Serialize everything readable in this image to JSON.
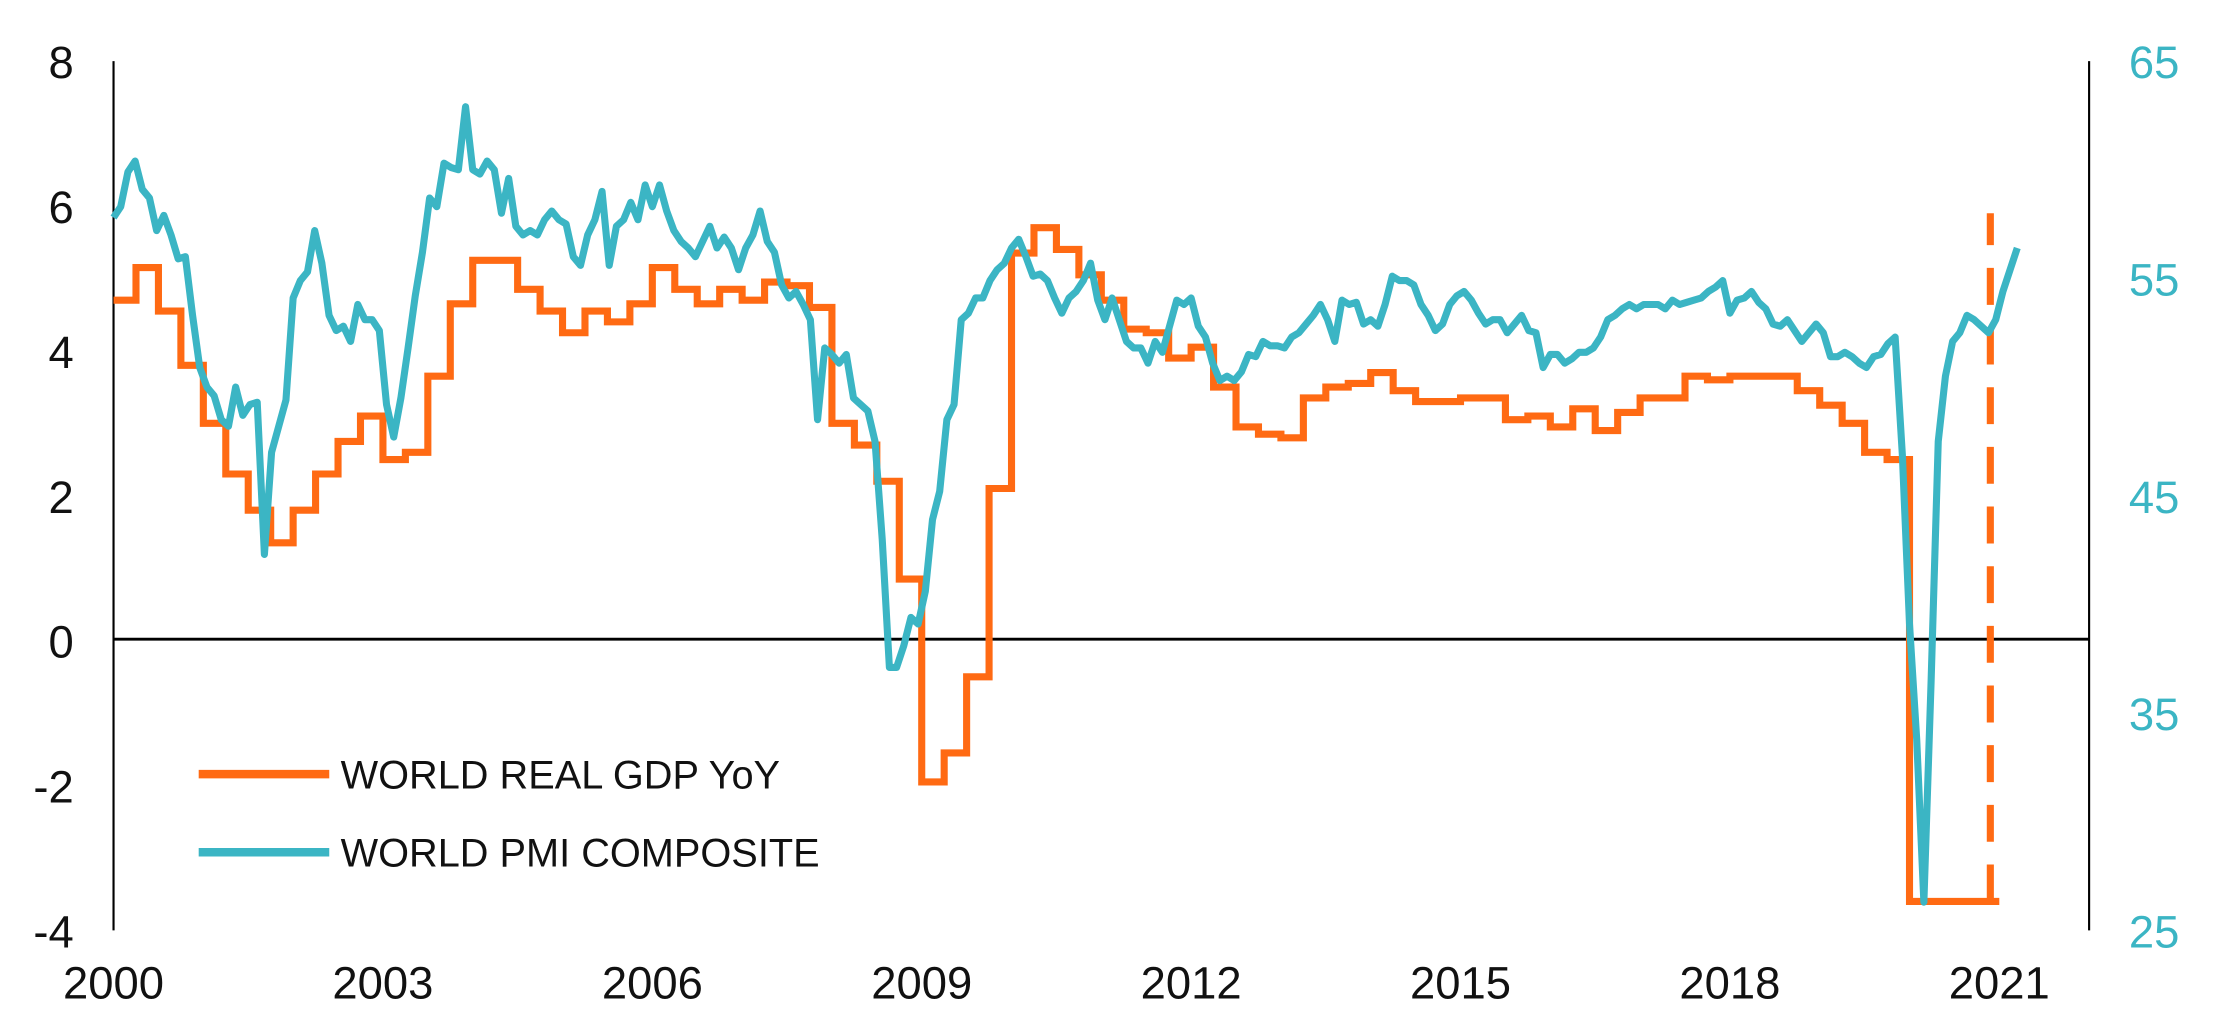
{
  "colors": {
    "gdp": "#FF6A13",
    "pmi": "#3BB5C4",
    "axis": "#000000"
  },
  "chart_data": {
    "type": "line",
    "title": "",
    "xlabel": "",
    "ylabel_left": "",
    "ylabel_right": "",
    "xlim": [
      2000,
      2022
    ],
    "ylim_left": [
      -4,
      8
    ],
    "ylim_right": [
      25,
      65
    ],
    "x_ticks": [
      "2000",
      "2003",
      "2006",
      "2009",
      "2012",
      "2015",
      "2018",
      "2021"
    ],
    "x_tick_values": [
      2000,
      2003,
      2006,
      2009,
      2012,
      2015,
      2018,
      2021
    ],
    "y_ticks_left": [
      "8",
      "6",
      "4",
      "2",
      "0",
      "-2",
      "-4"
    ],
    "y_tick_values_left": [
      8,
      6,
      4,
      2,
      0,
      -2,
      -4
    ],
    "y_ticks_right": [
      "65",
      "55",
      "45",
      "35",
      "25"
    ],
    "y_tick_values_right": [
      65,
      55,
      45,
      35,
      25
    ],
    "grid": false,
    "zero_line": true,
    "legend_position": "bottom-left",
    "series": [
      {
        "name": "WORLD REAL GDP YoY",
        "axis": "left",
        "style": "step",
        "x_start": 2000,
        "step": 0.25,
        "values": [
          4.7,
          5.15,
          4.55,
          3.8,
          3.0,
          2.3,
          1.8,
          1.35,
          1.8,
          2.3,
          2.75,
          3.1,
          2.5,
          2.6,
          3.65,
          4.65,
          5.25,
          5.25,
          4.85,
          4.55,
          4.25,
          4.55,
          4.4,
          4.65,
          5.15,
          4.85,
          4.65,
          4.85,
          4.7,
          4.95,
          4.9,
          4.6,
          3.0,
          2.7,
          2.2,
          0.85,
          -1.95,
          -1.55,
          -0.5,
          2.1,
          5.35,
          5.7,
          5.4,
          5.05,
          4.7,
          4.3,
          4.25,
          3.9,
          4.05,
          3.5,
          2.95,
          2.85,
          2.8,
          3.35,
          3.5,
          3.55,
          3.7,
          3.45,
          3.3,
          3.3,
          3.35,
          3.35,
          3.05,
          3.1,
          2.95,
          3.2,
          2.9,
          3.15,
          3.35,
          3.35,
          3.65,
          3.6,
          3.65,
          3.65,
          3.65,
          3.45,
          3.25,
          3.0,
          2.6,
          2.5,
          -3.6,
          -3.6,
          -3.6,
          -3.6
        ],
        "projection": {
          "x": 2020.9,
          "from": -3.6,
          "to": 5.9,
          "style": "dashed"
        }
      },
      {
        "name": "WORLD PMI COMPOSITE",
        "axis": "right",
        "style": "line",
        "x_start": 2000,
        "x_end": 2021.2,
        "values": [
          57.8,
          58.3,
          59.9,
          60.4,
          59.1,
          58.7,
          57.2,
          57.9,
          57.0,
          55.9,
          56.0,
          53.3,
          50.9,
          50.0,
          49.6,
          48.5,
          48.2,
          50.0,
          48.7,
          49.2,
          49.3,
          42.3,
          47.0,
          48.2,
          49.4,
          54.1,
          54.9,
          55.3,
          57.2,
          55.7,
          53.3,
          52.6,
          52.8,
          52.1,
          53.8,
          53.1,
          53.1,
          52.6,
          49.2,
          47.7,
          49.5,
          51.8,
          54.2,
          56.2,
          58.7,
          58.3,
          60.3,
          60.1,
          60.0,
          62.9,
          60.0,
          59.8,
          60.4,
          60.0,
          58.0,
          59.6,
          57.4,
          57.0,
          57.2,
          57.0,
          57.7,
          58.1,
          57.7,
          57.5,
          56.0,
          55.6,
          57.0,
          57.7,
          59.0,
          55.6,
          57.4,
          57.7,
          58.5,
          57.7,
          59.3,
          58.3,
          59.3,
          58.1,
          57.2,
          56.7,
          56.4,
          56.0,
          56.7,
          57.4,
          56.4,
          56.9,
          56.4,
          55.4,
          56.4,
          57.0,
          58.1,
          56.7,
          56.2,
          54.7,
          54.1,
          54.4,
          53.8,
          53.1,
          48.5,
          51.8,
          51.5,
          51.1,
          51.5,
          49.5,
          49.2,
          48.9,
          47.5,
          43.0,
          37.1,
          37.1,
          38.1,
          39.4,
          39.1,
          40.6,
          43.9,
          45.2,
          48.5,
          49.2,
          53.1,
          53.4,
          54.1,
          54.1,
          54.9,
          55.4,
          55.7,
          56.4,
          56.8,
          56.0,
          55.1,
          55.2,
          54.9,
          54.1,
          53.4,
          54.1,
          54.4,
          54.9,
          55.7,
          54.0,
          53.1,
          54.1,
          53.1,
          52.1,
          51.8,
          51.8,
          51.1,
          52.1,
          51.6,
          52.8,
          54.0,
          53.8,
          54.1,
          52.8,
          52.3,
          51.1,
          50.3,
          50.5,
          50.3,
          50.7,
          51.5,
          51.4,
          52.1,
          51.9,
          51.9,
          51.8,
          52.3,
          52.5,
          52.9,
          53.3,
          53.8,
          53.1,
          52.1,
          54.0,
          53.8,
          53.9,
          52.9,
          53.1,
          52.8,
          53.8,
          55.1,
          54.9,
          54.9,
          54.7,
          53.8,
          53.3,
          52.6,
          52.9,
          53.8,
          54.2,
          54.4,
          54.0,
          53.4,
          52.9,
          53.1,
          53.1,
          52.5,
          52.9,
          53.3,
          52.6,
          52.5,
          50.9,
          51.5,
          51.5,
          51.1,
          51.3,
          51.6,
          51.6,
          51.8,
          52.3,
          53.1,
          53.3,
          53.6,
          53.8,
          53.6,
          53.8,
          53.8,
          53.8,
          53.6,
          54.0,
          53.8,
          53.9,
          54.0,
          54.1,
          54.4,
          54.6,
          54.9,
          53.4,
          54.0,
          54.1,
          54.4,
          53.9,
          53.6,
          52.9,
          52.8,
          53.1,
          52.6,
          52.1,
          52.5,
          52.9,
          52.5,
          51.4,
          51.4,
          51.6,
          51.4,
          51.1,
          50.9,
          51.4,
          51.5,
          52.0,
          52.3,
          46.9,
          39.1,
          33.8,
          26.3,
          36.4,
          47.5,
          50.5,
          52.1,
          52.5,
          53.3,
          53.1,
          52.8,
          52.5,
          53.1,
          54.4,
          55.4,
          56.4
        ]
      }
    ]
  }
}
